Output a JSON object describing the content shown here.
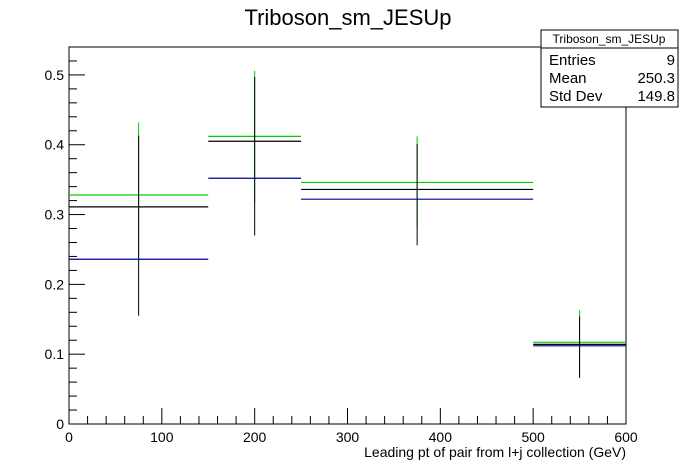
{
  "chart_data": {
    "type": "histogram",
    "title": "Triboson_sm_JESUp",
    "xlabel": "Leading pt of pair from l+j collection (GeV)",
    "ylabel": "",
    "xlim": [
      0,
      600
    ],
    "ylim": [
      0,
      0.54
    ],
    "x_ticks": [
      0,
      100,
      200,
      300,
      400,
      500,
      600
    ],
    "y_ticks": [
      0,
      0.1,
      0.2,
      0.3,
      0.4,
      0.5
    ],
    "x_tick_labels": [
      "0",
      "100",
      "200",
      "300",
      "400",
      "500",
      "600"
    ],
    "y_tick_labels": [
      "0",
      "0.1",
      "0.2",
      "0.3",
      "0.4",
      "0.5"
    ],
    "grid": false,
    "bins": [
      {
        "low": 0,
        "high": 150,
        "center": 75
      },
      {
        "low": 150,
        "high": 250,
        "center": 200
      },
      {
        "low": 250,
        "high": 500,
        "center": 375
      },
      {
        "low": 500,
        "high": 600,
        "center": 550
      }
    ],
    "series": [
      {
        "color": "#00cc00",
        "values": [
          0.328,
          0.412,
          0.346,
          0.117
        ],
        "err_low": [
          0.092,
          0.095,
          0.065,
          0.05
        ],
        "err_high": [
          0.104,
          0.094,
          0.066,
          0.046
        ]
      },
      {
        "color": "#000000",
        "values": [
          0.311,
          0.405,
          0.336,
          0.114
        ],
        "err_low": [
          0.156,
          0.135,
          0.08,
          0.048
        ],
        "err_high": [
          0.102,
          0.092,
          0.065,
          0.04
        ]
      },
      {
        "color": "#000099",
        "values": [
          0.236,
          0.352,
          0.322,
          0.112
        ],
        "err_low": [
          0.0,
          0.0,
          0.0,
          0.0
        ],
        "err_high": [
          0.0,
          0.0,
          0.0,
          0.0
        ]
      }
    ],
    "stats_box": {
      "title": "Triboson_sm_JESUp",
      "placement": "top-right",
      "rows": [
        {
          "label": "Entries",
          "value": "9"
        },
        {
          "label": "Mean",
          "value": "250.3"
        },
        {
          "label": "Std Dev",
          "value": "149.8"
        }
      ]
    }
  }
}
